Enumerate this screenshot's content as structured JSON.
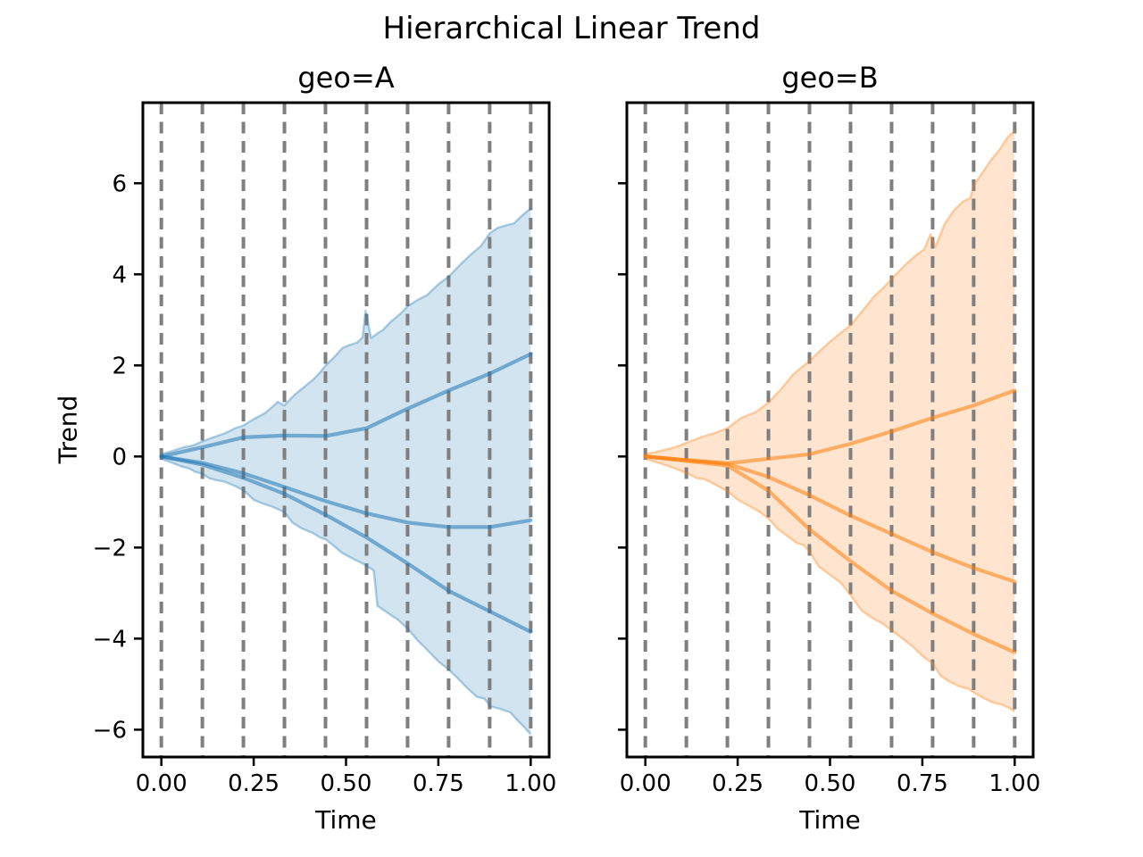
{
  "chart_data": {
    "type": "line",
    "suptitle": "Hierarchical Linear Trend",
    "xlabel": "Time",
    "ylabel": "Trend",
    "xlim": [
      -0.05,
      1.05
    ],
    "ylim": [
      -6.6,
      7.77
    ],
    "x_ticks": [
      0.0,
      0.25,
      0.5,
      0.75,
      1.0
    ],
    "x_tick_labels": [
      "0.00",
      "0.25",
      "0.50",
      "0.75",
      "1.00"
    ],
    "y_ticks": [
      -6,
      -4,
      -2,
      0,
      2,
      4,
      6
    ],
    "y_tick_labels": [
      "−6",
      "−4",
      "−2",
      "0",
      "2",
      "4",
      "6"
    ],
    "grid": "vertical dashed changepoint lines",
    "changepoint_line_color": "#7f7f7f",
    "changepoints": [
      0,
      0.1111,
      0.2222,
      0.3333,
      0.4444,
      0.5556,
      0.6667,
      0.7778,
      0.8889,
      1.0
    ],
    "legend": "none",
    "panels": [
      {
        "title": "geo=A",
        "color": "#1f77b4",
        "line_alpha": 0.55,
        "fill_alpha": 0.2,
        "edge_alpha": 0.35,
        "sample_x": [
          0,
          0.1111,
          0.2222,
          0.3333,
          0.4444,
          0.5556,
          0.6667,
          0.7778,
          0.8889,
          1.0
        ],
        "sample_lines": [
          {
            "name": "draw-1",
            "values": [
              0,
              0.2,
              0.42,
              0.46,
              0.45,
              0.62,
              1.05,
              1.45,
              1.82,
              2.25
            ]
          },
          {
            "name": "draw-2",
            "values": [
              0,
              -0.14,
              -0.37,
              -0.67,
              -0.98,
              -1.25,
              -1.45,
              -1.55,
              -1.55,
              -1.4
            ]
          },
          {
            "name": "draw-3",
            "values": [
              0,
              -0.18,
              -0.47,
              -0.82,
              -1.28,
              -1.78,
              -2.35,
              -2.95,
              -3.4,
              -3.85
            ]
          }
        ],
        "band_upper": [
          [
            0,
            0.05
          ],
          [
            0.03,
            0.12
          ],
          [
            0.06,
            0.2
          ],
          [
            0.085,
            0.24
          ],
          [
            0.111,
            0.33
          ],
          [
            0.14,
            0.42
          ],
          [
            0.17,
            0.5
          ],
          [
            0.2,
            0.62
          ],
          [
            0.222,
            0.68
          ],
          [
            0.25,
            0.82
          ],
          [
            0.28,
            0.95
          ],
          [
            0.305,
            1.12
          ],
          [
            0.315,
            1.2
          ],
          [
            0.333,
            1.12
          ],
          [
            0.36,
            1.35
          ],
          [
            0.39,
            1.55
          ],
          [
            0.41,
            1.68
          ],
          [
            0.43,
            1.85
          ],
          [
            0.445,
            2.0
          ],
          [
            0.47,
            2.2
          ],
          [
            0.49,
            2.38
          ],
          [
            0.51,
            2.45
          ],
          [
            0.53,
            2.5
          ],
          [
            0.545,
            2.62
          ],
          [
            0.553,
            3.2
          ],
          [
            0.568,
            2.6
          ],
          [
            0.585,
            2.7
          ],
          [
            0.6,
            2.78
          ],
          [
            0.62,
            2.95
          ],
          [
            0.645,
            3.12
          ],
          [
            0.667,
            3.3
          ],
          [
            0.69,
            3.42
          ],
          [
            0.72,
            3.55
          ],
          [
            0.75,
            3.78
          ],
          [
            0.778,
            3.95
          ],
          [
            0.81,
            4.22
          ],
          [
            0.84,
            4.45
          ],
          [
            0.865,
            4.62
          ],
          [
            0.889,
            4.9
          ],
          [
            0.91,
            5.02
          ],
          [
            0.935,
            5.08
          ],
          [
            0.955,
            5.12
          ],
          [
            0.975,
            5.28
          ],
          [
            1.0,
            5.45
          ]
        ],
        "band_lower": [
          [
            0,
            -0.05
          ],
          [
            0.03,
            -0.14
          ],
          [
            0.055,
            -0.22
          ],
          [
            0.075,
            -0.26
          ],
          [
            0.09,
            -0.33
          ],
          [
            0.111,
            -0.38
          ],
          [
            0.13,
            -0.48
          ],
          [
            0.15,
            -0.52
          ],
          [
            0.17,
            -0.55
          ],
          [
            0.2,
            -0.65
          ],
          [
            0.222,
            -0.74
          ],
          [
            0.25,
            -0.95
          ],
          [
            0.27,
            -1.02
          ],
          [
            0.3,
            -1.1
          ],
          [
            0.333,
            -1.22
          ],
          [
            0.355,
            -1.45
          ],
          [
            0.38,
            -1.58
          ],
          [
            0.41,
            -1.68
          ],
          [
            0.43,
            -1.78
          ],
          [
            0.445,
            -1.82
          ],
          [
            0.465,
            -1.95
          ],
          [
            0.49,
            -2.12
          ],
          [
            0.52,
            -2.25
          ],
          [
            0.545,
            -2.35
          ],
          [
            0.575,
            -2.5
          ],
          [
            0.585,
            -3.28
          ],
          [
            0.61,
            -3.42
          ],
          [
            0.64,
            -3.58
          ],
          [
            0.667,
            -3.78
          ],
          [
            0.695,
            -4.05
          ],
          [
            0.72,
            -4.25
          ],
          [
            0.75,
            -4.5
          ],
          [
            0.778,
            -4.68
          ],
          [
            0.8,
            -4.85
          ],
          [
            0.83,
            -5.1
          ],
          [
            0.855,
            -5.28
          ],
          [
            0.875,
            -5.32
          ],
          [
            0.89,
            -5.48
          ],
          [
            0.92,
            -5.55
          ],
          [
            0.945,
            -5.62
          ],
          [
            0.965,
            -5.8
          ],
          [
            0.98,
            -5.92
          ],
          [
            1.0,
            -6.1
          ]
        ]
      },
      {
        "title": "geo=B",
        "color": "#ff7f0e",
        "line_alpha": 0.55,
        "fill_alpha": 0.2,
        "edge_alpha": 0.35,
        "sample_x": [
          0,
          0.1111,
          0.2222,
          0.3333,
          0.4444,
          0.5556,
          0.6667,
          0.7778,
          0.8889,
          1.0
        ],
        "sample_lines": [
          {
            "name": "draw-1",
            "values": [
              0,
              -0.08,
              -0.15,
              -0.05,
              0.05,
              0.28,
              0.55,
              0.85,
              1.12,
              1.45
            ]
          },
          {
            "name": "draw-2",
            "values": [
              0,
              -0.08,
              -0.16,
              -0.45,
              -0.85,
              -1.3,
              -1.7,
              -2.1,
              -2.45,
              -2.75
            ]
          },
          {
            "name": "draw-3",
            "values": [
              0,
              -0.1,
              -0.2,
              -0.75,
              -1.6,
              -2.3,
              -2.95,
              -3.45,
              -3.9,
              -4.3
            ]
          }
        ],
        "band_upper": [
          [
            0,
            0.05
          ],
          [
            0.04,
            0.12
          ],
          [
            0.08,
            0.2
          ],
          [
            0.111,
            0.3
          ],
          [
            0.15,
            0.42
          ],
          [
            0.19,
            0.52
          ],
          [
            0.222,
            0.62
          ],
          [
            0.26,
            0.85
          ],
          [
            0.3,
            0.98
          ],
          [
            0.333,
            1.18
          ],
          [
            0.37,
            1.5
          ],
          [
            0.4,
            1.8
          ],
          [
            0.43,
            2.0
          ],
          [
            0.445,
            2.1
          ],
          [
            0.47,
            2.3
          ],
          [
            0.5,
            2.52
          ],
          [
            0.53,
            2.72
          ],
          [
            0.556,
            2.88
          ],
          [
            0.59,
            3.22
          ],
          [
            0.62,
            3.52
          ],
          [
            0.65,
            3.75
          ],
          [
            0.667,
            3.9
          ],
          [
            0.7,
            4.18
          ],
          [
            0.73,
            4.4
          ],
          [
            0.755,
            4.55
          ],
          [
            0.772,
            4.88
          ],
          [
            0.785,
            4.6
          ],
          [
            0.81,
            5.1
          ],
          [
            0.835,
            5.4
          ],
          [
            0.86,
            5.6
          ],
          [
            0.88,
            5.68
          ],
          [
            0.889,
            5.95
          ],
          [
            0.91,
            6.2
          ],
          [
            0.935,
            6.5
          ],
          [
            0.96,
            6.75
          ],
          [
            0.98,
            7.0
          ],
          [
            1.0,
            7.15
          ]
        ],
        "band_lower": [
          [
            0,
            -0.05
          ],
          [
            0.04,
            -0.15
          ],
          [
            0.08,
            -0.26
          ],
          [
            0.111,
            -0.36
          ],
          [
            0.14,
            -0.48
          ],
          [
            0.16,
            -0.5
          ],
          [
            0.19,
            -0.62
          ],
          [
            0.222,
            -0.76
          ],
          [
            0.25,
            -0.95
          ],
          [
            0.28,
            -1.08
          ],
          [
            0.31,
            -1.22
          ],
          [
            0.333,
            -1.36
          ],
          [
            0.36,
            -1.6
          ],
          [
            0.39,
            -1.78
          ],
          [
            0.41,
            -1.9
          ],
          [
            0.43,
            -1.95
          ],
          [
            0.445,
            -2.1
          ],
          [
            0.47,
            -2.42
          ],
          [
            0.5,
            -2.6
          ],
          [
            0.53,
            -2.78
          ],
          [
            0.556,
            -3.05
          ],
          [
            0.585,
            -3.38
          ],
          [
            0.615,
            -3.55
          ],
          [
            0.645,
            -3.68
          ],
          [
            0.667,
            -3.82
          ],
          [
            0.7,
            -4.02
          ],
          [
            0.725,
            -4.18
          ],
          [
            0.75,
            -4.38
          ],
          [
            0.778,
            -4.55
          ],
          [
            0.8,
            -4.82
          ],
          [
            0.825,
            -4.95
          ],
          [
            0.85,
            -5.05
          ],
          [
            0.875,
            -5.1
          ],
          [
            0.889,
            -5.18
          ],
          [
            0.915,
            -5.3
          ],
          [
            0.94,
            -5.4
          ],
          [
            0.965,
            -5.45
          ],
          [
            0.985,
            -5.52
          ],
          [
            1.0,
            -5.6
          ]
        ]
      }
    ]
  }
}
